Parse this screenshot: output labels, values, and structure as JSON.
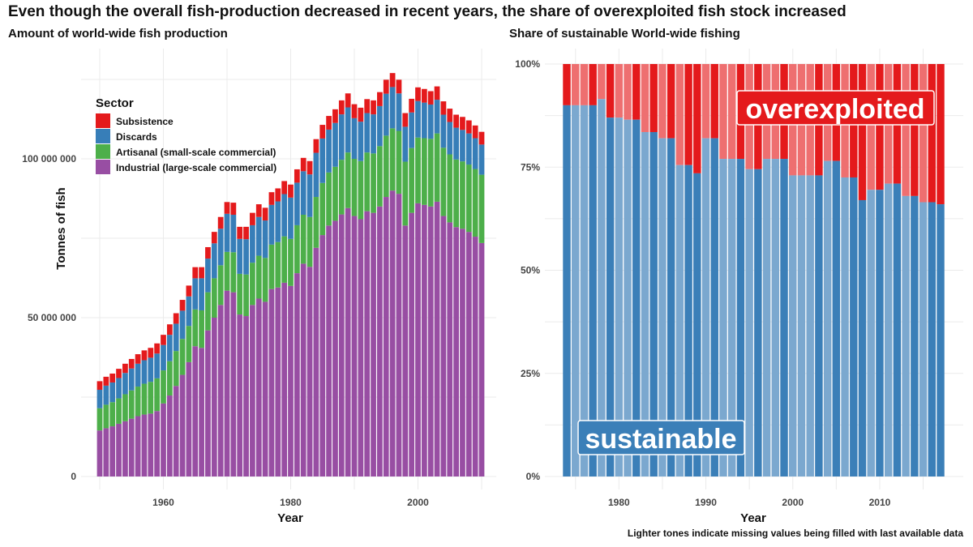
{
  "title": "Even though the overall fish-production decreased in recent years, the share of overexploited fish stock increased",
  "footnote": "Lighter tones indicate missing values being filled with last available data",
  "colors": {
    "subsistence": "#e41a1c",
    "discards": "#377eb8",
    "artisanal": "#4daf4a",
    "industrial": "#984ea3",
    "sustainable": "#3b7fb8",
    "sustainable_light": "#7ba8cf",
    "overexploited": "#e41a1c",
    "overexploited_light": "#ee6f70"
  },
  "chart_data": [
    {
      "type": "bar",
      "stacked": true,
      "title": "Amount of world-wide fish production",
      "xlabel": "Year",
      "ylabel": "Tonnes of fish",
      "xlim": [
        1950,
        2010
      ],
      "ylim": [
        0,
        130000000
      ],
      "x_ticks": [
        1960,
        1980,
        2000
      ],
      "y_ticks": [
        0,
        50000000,
        100000000
      ],
      "y_tick_labels": [
        "0",
        "50 000 000",
        "100 000 000"
      ],
      "legend": {
        "title": "Sector",
        "position": "top-left",
        "entries": [
          "Subsistence",
          "Discards",
          "Artisanal (small-scale commercial)",
          "Industrial (large-scale commercial)"
        ]
      },
      "x": [
        1950,
        1951,
        1952,
        1953,
        1954,
        1955,
        1956,
        1957,
        1958,
        1959,
        1960,
        1961,
        1962,
        1963,
        1964,
        1965,
        1966,
        1967,
        1968,
        1969,
        1970,
        1971,
        1972,
        1973,
        1974,
        1975,
        1976,
        1977,
        1978,
        1979,
        1980,
        1981,
        1982,
        1983,
        1984,
        1985,
        1986,
        1987,
        1988,
        1989,
        1990,
        1991,
        1992,
        1993,
        1994,
        1995,
        1996,
        1997,
        1998,
        1999,
        2000,
        2001,
        2002,
        2003,
        2004,
        2005,
        2006,
        2007,
        2008,
        2009,
        2010
      ],
      "series": [
        {
          "name": "Industrial (large-scale commercial)",
          "values": [
            14500000,
            15200000,
            15800000,
            16600000,
            17400000,
            18200000,
            19000000,
            19500000,
            19800000,
            20600000,
            23000000,
            25500000,
            28500000,
            32000000,
            36000000,
            41000000,
            40500000,
            46000000,
            50000000,
            54000000,
            58500000,
            58000000,
            51000000,
            50500000,
            54000000,
            56000000,
            55000000,
            59000000,
            59500000,
            61000000,
            60000000,
            64000000,
            67000000,
            66000000,
            72000000,
            76000000,
            79000000,
            80500000,
            82500000,
            84500000,
            82000000,
            81000000,
            83500000,
            83000000,
            85000000,
            88000000,
            90000000,
            89000000,
            79000000,
            83000000,
            86000000,
            85500000,
            85000000,
            86500000,
            82000000,
            80000000,
            78500000,
            78000000,
            77000000,
            75500000,
            73500000
          ]
        },
        {
          "name": "Artisanal (small-scale commercial)",
          "values": [
            7000000,
            7400000,
            7600000,
            8000000,
            8500000,
            8900000,
            9300000,
            9700000,
            10000000,
            10300000,
            10400000,
            10800000,
            11000000,
            11300000,
            11400000,
            11600000,
            11800000,
            12000000,
            12400000,
            12500000,
            12200000,
            12600000,
            12800000,
            13100000,
            13300000,
            13500000,
            13800000,
            14000000,
            14300000,
            14600000,
            14800000,
            15100000,
            15400000,
            15700000,
            16000000,
            16400000,
            16700000,
            17000000,
            17200000,
            17500000,
            18000000,
            18300000,
            18500000,
            18700000,
            19000000,
            19300000,
            19600000,
            19800000,
            20100000,
            20400000,
            20700000,
            21000000,
            21300000,
            21500000,
            21500000,
            21400000,
            21300000,
            21200000,
            21200000,
            21300000,
            21500000
          ]
        },
        {
          "name": "Discards",
          "values": [
            5800000,
            6000000,
            6200000,
            6400000,
            6700000,
            6900000,
            7200000,
            7400000,
            7600000,
            7800000,
            8000000,
            8300000,
            8600000,
            8900000,
            9300000,
            9800000,
            10100000,
            10600000,
            11000000,
            11500000,
            12000000,
            11800000,
            11000000,
            11100000,
            11800000,
            12200000,
            11800000,
            12500000,
            12800000,
            13300000,
            13000000,
            13400000,
            13700000,
            13400000,
            13900000,
            14000000,
            13500000,
            13800000,
            14300000,
            14200000,
            12800000,
            12400000,
            12400000,
            12300000,
            12600000,
            13200000,
            13000000,
            11800000,
            11000000,
            11200000,
            11500000,
            11200000,
            10800000,
            10600000,
            10400000,
            10200000,
            10000000,
            9900000,
            9800000,
            9700000,
            9500000
          ]
        },
        {
          "name": "Subsistence",
          "values": [
            2700000,
            2800000,
            2800000,
            2900000,
            2900000,
            3000000,
            3000000,
            3100000,
            3100000,
            3200000,
            3200000,
            3300000,
            3300000,
            3400000,
            3400000,
            3500000,
            3500000,
            3600000,
            3600000,
            3700000,
            3700000,
            3800000,
            3800000,
            3900000,
            3900000,
            4000000,
            4000000,
            4000000,
            4100000,
            4100000,
            4100000,
            4200000,
            4200000,
            4200000,
            4300000,
            4300000,
            4300000,
            4300000,
            4400000,
            4400000,
            4400000,
            4400000,
            4400000,
            4400000,
            4400000,
            4400000,
            4400000,
            4300000,
            4300000,
            4300000,
            4300000,
            4300000,
            4200000,
            4200000,
            4200000,
            4200000,
            4100000,
            4100000,
            4100000,
            4000000,
            4000000
          ]
        }
      ]
    },
    {
      "type": "bar",
      "stacked": true,
      "normalized": true,
      "title": "Share of sustainable World-wide fishing",
      "xlabel": "Year",
      "ylabel": "",
      "xlim": [
        1974,
        2017
      ],
      "ylim": [
        0,
        1
      ],
      "x_ticks": [
        1980,
        1990,
        2000,
        2010
      ],
      "y_ticks": [
        0,
        0.25,
        0.5,
        0.75,
        1
      ],
      "y_tick_labels": [
        "0%",
        "25%",
        "50%",
        "75%",
        "100%"
      ],
      "x": [
        1974,
        1975,
        1976,
        1977,
        1978,
        1979,
        1980,
        1981,
        1982,
        1983,
        1984,
        1985,
        1986,
        1987,
        1988,
        1989,
        1990,
        1991,
        1992,
        1993,
        1994,
        1995,
        1996,
        1997,
        1998,
        1999,
        2000,
        2001,
        2002,
        2003,
        2004,
        2005,
        2006,
        2007,
        2008,
        2009,
        2010,
        2011,
        2012,
        2013,
        2014,
        2015,
        2016,
        2017
      ],
      "sustainable_share": [
        0.9,
        0.9,
        0.9,
        0.9,
        0.915,
        0.87,
        0.87,
        0.865,
        0.865,
        0.835,
        0.835,
        0.82,
        0.82,
        0.755,
        0.755,
        0.735,
        0.82,
        0.82,
        0.77,
        0.77,
        0.77,
        0.745,
        0.745,
        0.77,
        0.77,
        0.77,
        0.73,
        0.73,
        0.73,
        0.73,
        0.765,
        0.765,
        0.725,
        0.725,
        0.67,
        0.695,
        0.695,
        0.71,
        0.71,
        0.68,
        0.68,
        0.665,
        0.665,
        0.66
      ],
      "filled": [
        false,
        true,
        true,
        false,
        true,
        false,
        true,
        true,
        false,
        true,
        false,
        true,
        false,
        true,
        false,
        false,
        true,
        false,
        true,
        true,
        false,
        true,
        false,
        true,
        true,
        false,
        true,
        true,
        true,
        false,
        true,
        false,
        true,
        false,
        false,
        true,
        false,
        true,
        false,
        true,
        false,
        true,
        false,
        false
      ],
      "annotations": {
        "top": "overexploited",
        "bottom": "sustainable"
      }
    }
  ]
}
